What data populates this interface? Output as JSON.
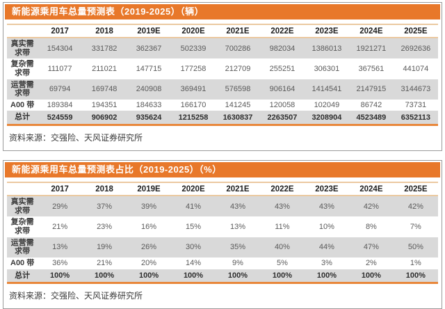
{
  "colors": {
    "title_bar_bg": "#E8782A",
    "title_text": "#FFFFFF",
    "header_rule": "#EBC9A0",
    "total_rule": "#E8873B",
    "stripe_bg": "#D9D9D9",
    "number_text": "#5A5A5A",
    "card_border": "#9A9A9A"
  },
  "tables": [
    {
      "title": "新能源乘用车总量预测表（2019-2025）（辆）",
      "columns": [
        "2017",
        "2018",
        "2019E",
        "2020E",
        "2021E",
        "2022E",
        "2023E",
        "2024E",
        "2025E"
      ],
      "rows": [
        {
          "label": "真实需求带",
          "values": [
            "154304",
            "331782",
            "362367",
            "502339",
            "700286",
            "982034",
            "1386013",
            "1921271",
            "2692636"
          ],
          "total": false
        },
        {
          "label": "复杂需求带",
          "values": [
            "111077",
            "211021",
            "147715",
            "177258",
            "212709",
            "255251",
            "306301",
            "367561",
            "441074"
          ],
          "total": false
        },
        {
          "label": "运营需求带",
          "values": [
            "69794",
            "169748",
            "240908",
            "369491",
            "576598",
            "906164",
            "1414541",
            "2147915",
            "3144673"
          ],
          "total": false
        },
        {
          "label": "A00 带",
          "values": [
            "189384",
            "194351",
            "184633",
            "166170",
            "141245",
            "120058",
            "102049",
            "86742",
            "73731"
          ],
          "total": false
        },
        {
          "label": "总计",
          "values": [
            "524559",
            "906902",
            "935624",
            "1215258",
            "1630837",
            "2263507",
            "3208904",
            "4523489",
            "6352113"
          ],
          "total": true
        }
      ],
      "source": "资料来源：交强险、天风证券研究所"
    },
    {
      "title": "新能源乘用车总量预测表占比（2019-2025）（%）",
      "columns": [
        "2017",
        "2018",
        "2019E",
        "2020E",
        "2021E",
        "2022E",
        "2023E",
        "2024E",
        "2025E"
      ],
      "rows": [
        {
          "label": "真实需求带",
          "values": [
            "29%",
            "37%",
            "39%",
            "41%",
            "43%",
            "43%",
            "43%",
            "42%",
            "42%"
          ],
          "total": false
        },
        {
          "label": "复杂需求带",
          "values": [
            "21%",
            "23%",
            "16%",
            "15%",
            "13%",
            "11%",
            "10%",
            "8%",
            "7%"
          ],
          "total": false
        },
        {
          "label": "运营需求带",
          "values": [
            "13%",
            "19%",
            "26%",
            "30%",
            "35%",
            "40%",
            "44%",
            "47%",
            "50%"
          ],
          "total": false
        },
        {
          "label": "A00 带",
          "values": [
            "36%",
            "21%",
            "20%",
            "14%",
            "9%",
            "5%",
            "3%",
            "2%",
            "1%"
          ],
          "total": false
        },
        {
          "label": "总计",
          "values": [
            "100%",
            "100%",
            "100%",
            "100%",
            "100%",
            "100%",
            "100%",
            "100%",
            "100%"
          ],
          "total": true
        }
      ],
      "source": "资料来源：交强险、天风证券研究所"
    }
  ]
}
